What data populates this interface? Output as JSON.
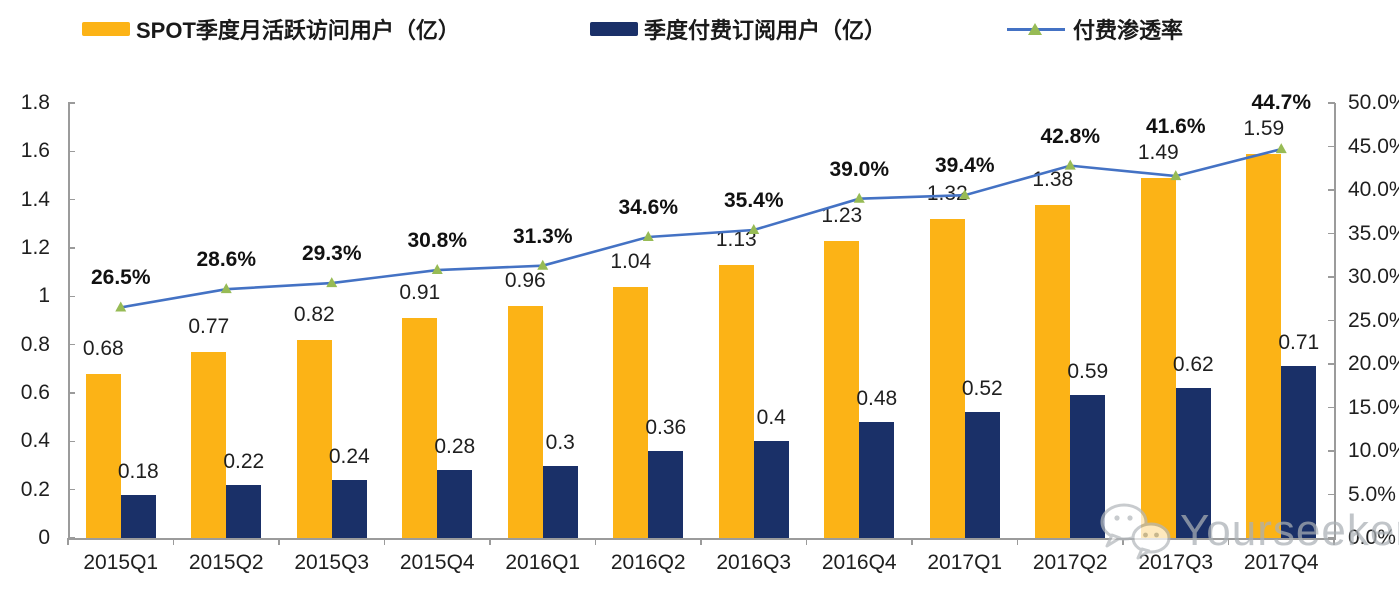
{
  "legend": [
    {
      "label": "SPOT季度月活跃访问用户（亿）",
      "color": "#FCB316",
      "type": "bar"
    },
    {
      "label": "季度付费订阅用户（亿）",
      "color": "#1A3068",
      "type": "bar"
    },
    {
      "label": "付费渗透率",
      "color": "#4472C4",
      "marker_color": "#97BB55",
      "type": "line"
    }
  ],
  "chart_data": {
    "type": "bar",
    "categories": [
      "2015Q1",
      "2015Q2",
      "2015Q3",
      "2015Q4",
      "2016Q1",
      "2016Q2",
      "2016Q3",
      "2016Q4",
      "2017Q1",
      "2017Q2",
      "2017Q3",
      "2017Q4"
    ],
    "series": [
      {
        "name": "SPOT季度月活跃访问用户（亿）",
        "type": "bar",
        "axis": "left",
        "color": "#FCB316",
        "values": [
          0.68,
          0.77,
          0.82,
          0.91,
          0.96,
          1.04,
          1.13,
          1.23,
          1.32,
          1.38,
          1.49,
          1.59
        ],
        "labels": [
          "0.68",
          "0.77",
          "0.82",
          "0.91",
          "0.96",
          "1.04",
          "1.13",
          "1.23",
          "1.32",
          "1.38",
          "1.49",
          "1.59"
        ]
      },
      {
        "name": "季度付费订阅用户（亿）",
        "type": "bar",
        "axis": "left",
        "color": "#1A3068",
        "values": [
          0.18,
          0.22,
          0.24,
          0.28,
          0.3,
          0.36,
          0.4,
          0.48,
          0.52,
          0.59,
          0.62,
          0.71
        ],
        "labels": [
          "0.18",
          "0.22",
          "0.24",
          "0.28",
          "0.3",
          "0.36",
          "0.4",
          "0.48",
          "0.52",
          "0.59",
          "0.62",
          "0.71"
        ]
      },
      {
        "name": "付费渗透率",
        "type": "line",
        "axis": "right",
        "color": "#4472C4",
        "marker_color": "#97BB55",
        "values": [
          26.5,
          28.6,
          29.3,
          30.8,
          31.3,
          34.6,
          35.4,
          39.0,
          39.4,
          42.8,
          41.6,
          44.7
        ],
        "labels": [
          "26.5%",
          "28.6%",
          "29.3%",
          "30.8%",
          "31.3%",
          "34.6%",
          "35.4%",
          "39.0%",
          "39.4%",
          "42.8%",
          "41.6%",
          "44.7%"
        ]
      }
    ],
    "left_axis": {
      "min": 0,
      "max": 1.8,
      "ticks": [
        "0",
        "0.2",
        "0.4",
        "0.6",
        "0.8",
        "1",
        "1.2",
        "1.4",
        "1.6",
        "1.8"
      ]
    },
    "right_axis": {
      "min": 0,
      "max": 50,
      "ticks": [
        "0.0%",
        "5.0%",
        "10.0%",
        "15.0%",
        "20.0%",
        "25.0%",
        "30.0%",
        "35.0%",
        "40.0%",
        "45.0%",
        "50.0%"
      ]
    },
    "grid": false,
    "legend_position": "top"
  },
  "watermark": {
    "text": "Yourseeker",
    "icon": "wechat-icon"
  }
}
